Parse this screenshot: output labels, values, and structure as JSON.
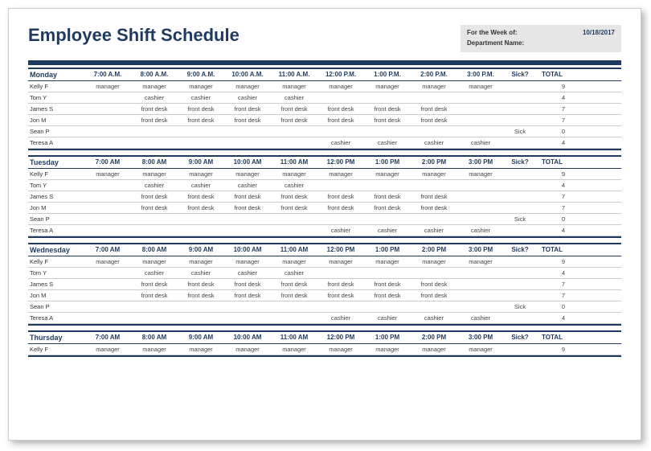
{
  "title": "Employee Shift Schedule",
  "info": {
    "week_label": "For the Week of:",
    "week_value": "10/18/2017",
    "dept_label": "Department Name:",
    "dept_value": ""
  },
  "col_sick": "Sick?",
  "col_total": "TOTAL",
  "days": [
    {
      "name": "Monday",
      "times": [
        "7:00 A.M.",
        "8:00 A.M.",
        "9:00 A.M.",
        "10:00 A.M.",
        "11:00 A.M.",
        "12:00 P.M.",
        "1:00 P.M.",
        "2:00 P.M.",
        "3:00 P.M."
      ],
      "rows": [
        {
          "emp": "Kelly F",
          "cells": [
            "manager",
            "manager",
            "manager",
            "manager",
            "manager",
            "manager",
            "manager",
            "manager",
            "manager"
          ],
          "sick": "",
          "total": "9"
        },
        {
          "emp": "Tom Y",
          "cells": [
            "",
            "cashier",
            "cashier",
            "cashier",
            "cashier",
            "",
            "",
            "",
            ""
          ],
          "sick": "",
          "total": "4"
        },
        {
          "emp": "James S",
          "cells": [
            "",
            "front desk",
            "front desk",
            "front desk",
            "front desk",
            "front desk",
            "front desk",
            "front desk",
            ""
          ],
          "sick": "",
          "total": "7"
        },
        {
          "emp": "Jon M",
          "cells": [
            "",
            "front desk",
            "front desk",
            "front desk",
            "front desk",
            "front desk",
            "front desk",
            "front desk",
            ""
          ],
          "sick": "",
          "total": "7"
        },
        {
          "emp": "Sean P",
          "cells": [
            "",
            "",
            "",
            "",
            "",
            "",
            "",
            "",
            ""
          ],
          "sick": "Sick",
          "total": "0"
        },
        {
          "emp": "Teresa A",
          "cells": [
            "",
            "",
            "",
            "",
            "",
            "cashier",
            "cashier",
            "cashier",
            "cashier"
          ],
          "sick": "",
          "total": "4"
        }
      ]
    },
    {
      "name": "Tuesday",
      "times": [
        "7:00 AM",
        "8:00 AM",
        "9:00 AM",
        "10:00 AM",
        "11:00 AM",
        "12:00 PM",
        "1:00 PM",
        "2:00 PM",
        "3:00 PM"
      ],
      "rows": [
        {
          "emp": "Kelly F",
          "cells": [
            "manager",
            "manager",
            "manager",
            "manager",
            "manager",
            "manager",
            "manager",
            "manager",
            "manager"
          ],
          "sick": "",
          "total": "9"
        },
        {
          "emp": "Tom Y",
          "cells": [
            "",
            "cashier",
            "cashier",
            "cashier",
            "cashier",
            "",
            "",
            "",
            ""
          ],
          "sick": "",
          "total": "4"
        },
        {
          "emp": "James S",
          "cells": [
            "",
            "front desk",
            "front desk",
            "front desk",
            "front desk",
            "front desk",
            "front desk",
            "front desk",
            ""
          ],
          "sick": "",
          "total": "7"
        },
        {
          "emp": "Jon M",
          "cells": [
            "",
            "front desk",
            "front desk",
            "front desk",
            "front desk",
            "front desk",
            "front desk",
            "front desk",
            ""
          ],
          "sick": "",
          "total": "7"
        },
        {
          "emp": "Sean P",
          "cells": [
            "",
            "",
            "",
            "",
            "",
            "",
            "",
            "",
            ""
          ],
          "sick": "Sick",
          "total": "0"
        },
        {
          "emp": "Teresa A",
          "cells": [
            "",
            "",
            "",
            "",
            "",
            "cashier",
            "cashier",
            "cashier",
            "cashier"
          ],
          "sick": "",
          "total": "4"
        }
      ]
    },
    {
      "name": "Wednesday",
      "times": [
        "7:00 AM",
        "8:00 AM",
        "9:00 AM",
        "10:00 AM",
        "11:00 AM",
        "12:00 PM",
        "1:00 PM",
        "2:00 PM",
        "3:00 PM"
      ],
      "rows": [
        {
          "emp": "Kelly F",
          "cells": [
            "manager",
            "manager",
            "manager",
            "manager",
            "manager",
            "manager",
            "manager",
            "manager",
            "manager"
          ],
          "sick": "",
          "total": "9"
        },
        {
          "emp": "Tom Y",
          "cells": [
            "",
            "cashier",
            "cashier",
            "cashier",
            "cashier",
            "",
            "",
            "",
            ""
          ],
          "sick": "",
          "total": "4"
        },
        {
          "emp": "James S",
          "cells": [
            "",
            "front desk",
            "front desk",
            "front desk",
            "front desk",
            "front desk",
            "front desk",
            "front desk",
            ""
          ],
          "sick": "",
          "total": "7"
        },
        {
          "emp": "Jon M",
          "cells": [
            "",
            "front desk",
            "front desk",
            "front desk",
            "front desk",
            "front desk",
            "front desk",
            "front desk",
            ""
          ],
          "sick": "",
          "total": "7"
        },
        {
          "emp": "Sean P",
          "cells": [
            "",
            "",
            "",
            "",
            "",
            "",
            "",
            "",
            ""
          ],
          "sick": "Sick",
          "total": "0"
        },
        {
          "emp": "Teresa A",
          "cells": [
            "",
            "",
            "",
            "",
            "",
            "cashier",
            "cashier",
            "cashier",
            "cashier"
          ],
          "sick": "",
          "total": "4"
        }
      ]
    },
    {
      "name": "Thursday",
      "times": [
        "7:00 AM",
        "8:00 AM",
        "9:00 AM",
        "10:00 AM",
        "11:00 AM",
        "12:00 PM",
        "1:00 PM",
        "2:00 PM",
        "3:00 PM"
      ],
      "rows": [
        {
          "emp": "Kelly F",
          "cells": [
            "manager",
            "manager",
            "manager",
            "manager",
            "manager",
            "manager",
            "manager",
            "manager",
            "manager"
          ],
          "sick": "",
          "total": "9"
        }
      ]
    }
  ]
}
